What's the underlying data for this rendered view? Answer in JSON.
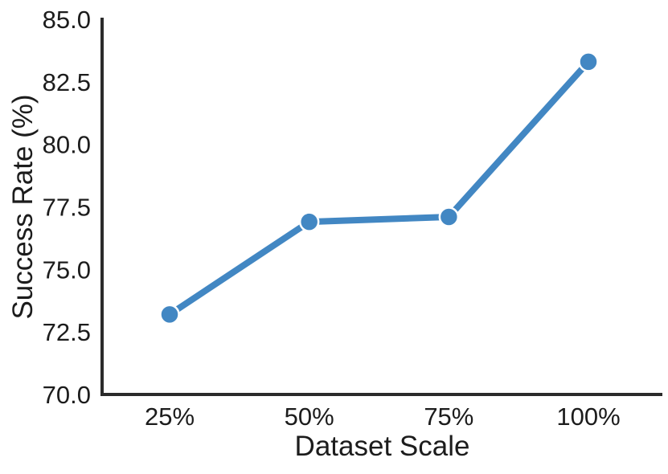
{
  "figure": {
    "background_color": "#ffffff"
  },
  "chart_data": {
    "type": "line",
    "title": "",
    "categories": [
      "25%",
      "50%",
      "75%",
      "100%"
    ],
    "values": [
      73.2,
      76.9,
      77.1,
      83.3
    ],
    "xlabel": "Dataset Scale",
    "ylabel": "Success Rate (%)",
    "ylim": [
      70.0,
      85.0
    ],
    "yticks": [
      70.0,
      72.5,
      75.0,
      77.5,
      80.0,
      82.5,
      85.0
    ],
    "ytick_decimals": 1,
    "grid": false,
    "legend": false,
    "marker_shape": "circle",
    "line_color": "#4287c3",
    "marker_color": "#4287c3",
    "marker_edge_color": "#ffffff",
    "spine_color": "#2b2b2b",
    "text_color": "#1c1c1c"
  }
}
